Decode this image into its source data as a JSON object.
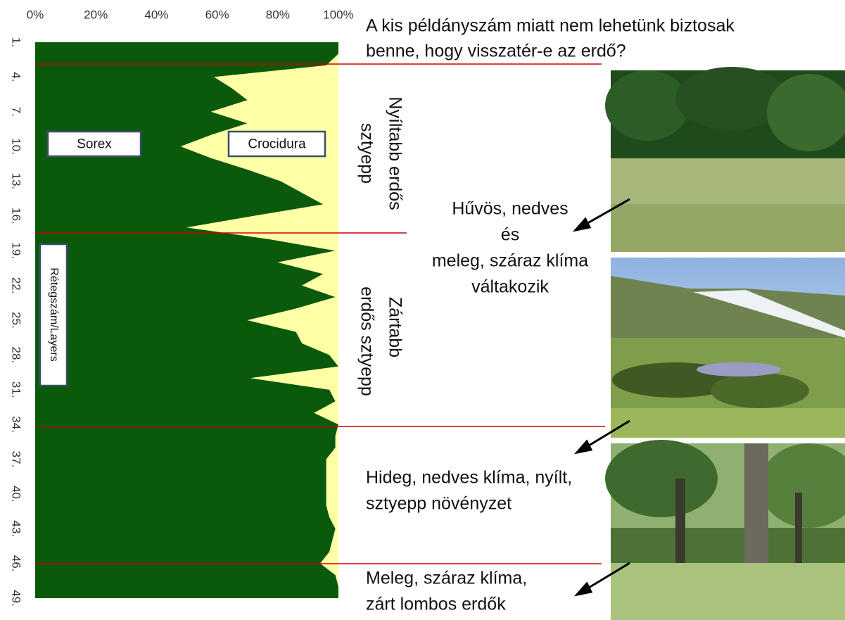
{
  "chart_data": {
    "type": "area",
    "orientation": "horizontal",
    "stacked": true,
    "categories": [
      "1.",
      null,
      null,
      "4.",
      null,
      null,
      "7.",
      null,
      null,
      "10.",
      null,
      null,
      "13.",
      null,
      null,
      "16.",
      null,
      null,
      "19.",
      null,
      null,
      "22.",
      null,
      null,
      "25.",
      null,
      null,
      "28.",
      null,
      null,
      "31.",
      null,
      null,
      "34.",
      null,
      null,
      "37.",
      null,
      null,
      "40.",
      null,
      null,
      "43.",
      null,
      null,
      "46.",
      null,
      null,
      "49."
    ],
    "series": [
      {
        "name": "Sorex",
        "color": "#0b5a0b",
        "values": [
          100,
          100,
          96,
          59,
          65,
          70,
          58,
          70,
          58,
          48,
          58,
          70,
          81,
          88,
          95,
          72,
          50,
          77,
          99,
          80,
          95,
          88,
          99,
          86,
          70,
          86,
          88,
          97,
          100,
          71,
          97,
          99,
          92,
          100,
          99,
          99,
          96,
          96,
          96,
          96,
          96,
          97,
          99,
          98,
          97,
          94,
          99,
          100,
          100
        ]
      },
      {
        "name": "Crocidura",
        "color": "#ffffa6",
        "values": [
          0,
          0,
          4,
          41,
          35,
          30,
          42,
          30,
          42,
          52,
          42,
          30,
          19,
          12,
          5,
          28,
          50,
          23,
          1,
          20,
          5,
          12,
          1,
          14,
          30,
          14,
          12,
          3,
          0,
          29,
          3,
          1,
          8,
          0,
          1,
          1,
          4,
          4,
          4,
          4,
          4,
          3,
          1,
          2,
          3,
          6,
          1,
          0,
          0
        ]
      }
    ],
    "xlim": [
      0,
      100
    ],
    "xticks": [
      {
        "value": 0,
        "label": "0%"
      },
      {
        "value": 20,
        "label": "20%"
      },
      {
        "value": 40,
        "label": "40%"
      },
      {
        "value": 60,
        "label": "60%"
      },
      {
        "value": 80,
        "label": "80%"
      },
      {
        "value": 100,
        "label": "100%"
      }
    ],
    "ylabel": "Rétegszám/Layers"
  },
  "annotations": {
    "question": [
      "A kis példányszám miatt nem lehetünk biztosak",
      "benne, hogy visszatér-e az erdő?"
    ],
    "open_steppe": [
      "Nyíltabb erdős",
      "sztyepp"
    ],
    "closed_steppe": [
      "Zártabb",
      "erdős sztyepp"
    ],
    "alternating": [
      "Hűvös, nedves",
      "és",
      "meleg, száraz klíma",
      "váltakozik"
    ],
    "cold": [
      "Hideg, nedves klíma, nyílt,",
      "sztyepp növényzet"
    ],
    "warm": [
      "Meleg, száraz klíma,",
      "zárt lombos erdők"
    ]
  }
}
